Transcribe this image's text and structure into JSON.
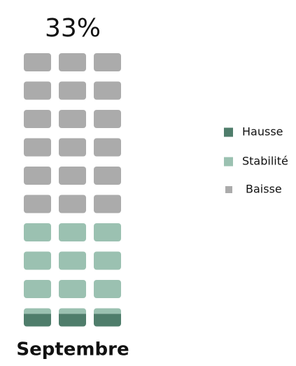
{
  "chart_data": {
    "type": "waffle",
    "headline": {
      "value": 33,
      "label": "33%"
    },
    "category": "Septembre",
    "series": [
      {
        "name": "Hausse",
        "color": "#4f7d6b",
        "values": [
          7
        ]
      },
      {
        "name": "Stabilité",
        "color": "#9bc1b1",
        "values": [
          33
        ]
      },
      {
        "name": "Baisse",
        "color": "#ababab",
        "values": [
          60
        ]
      }
    ]
  }
}
